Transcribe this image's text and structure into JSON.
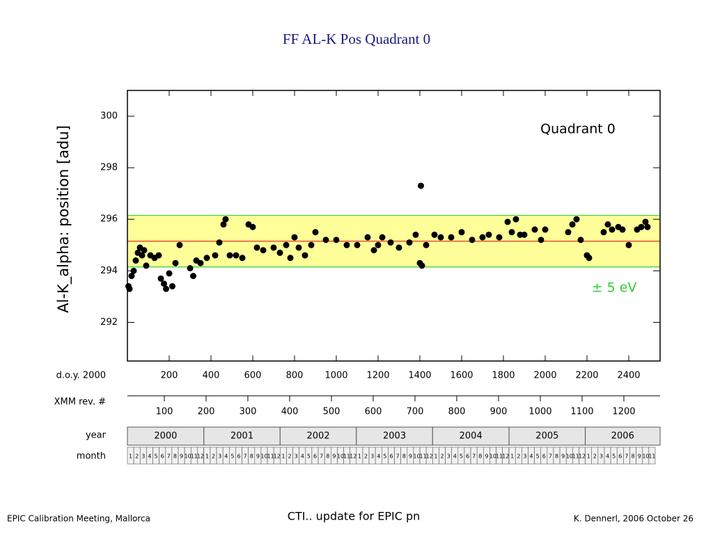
{
  "slide_title": "FF   AL-K   Pos   Quadrant 0",
  "footer": {
    "left": "EPIC Calibration Meeting, Mallorca",
    "center": "CTI.. update for EPIC pn",
    "right": "K. Dennerl, 2006 October 26"
  },
  "chart_data": {
    "type": "scatter",
    "y_label": "Al-K_alpha:  position  [adu]",
    "annotation": "Quadrant 0",
    "band_label": "± 5 eV",
    "band": [
      294.15,
      296.15
    ],
    "band_color": "#ffff99",
    "band_line_color": "#33cc33",
    "center": 295.15,
    "center_color": "#e03020",
    "color": "#000000",
    "x_label": "d.o.y. 2000",
    "xlim": [
      0,
      2550
    ],
    "xticks": [
      200,
      400,
      600,
      800,
      1000,
      1200,
      1400,
      1600,
      1800,
      2000,
      2200,
      2400
    ],
    "ylim": [
      290.5,
      301
    ],
    "yticks": [
      292,
      294,
      296,
      298,
      300
    ],
    "rev_label": "XMM rev. #",
    "rev_xlim": [
      11.7,
      1286.7
    ],
    "rev_ticks": [
      100,
      200,
      300,
      400,
      500,
      600,
      700,
      800,
      900,
      1000,
      1100,
      1200
    ],
    "year_label": "year",
    "years": [
      "2000",
      "2001",
      "2002",
      "2003",
      "2004",
      "2005",
      "2006"
    ],
    "year_starts": [
      0,
      366,
      731,
      1096,
      1461,
      1827,
      2192
    ],
    "month_label": "month",
    "months": [
      1,
      2,
      3,
      4,
      5,
      6,
      7,
      8,
      9,
      10,
      11,
      12
    ],
    "x": [
      5,
      10,
      20,
      30,
      40,
      50,
      60,
      70,
      80,
      90,
      110,
      130,
      150,
      160,
      175,
      185,
      200,
      215,
      230,
      250,
      300,
      315,
      330,
      350,
      380,
      420,
      440,
      460,
      470,
      490,
      520,
      550,
      580,
      600,
      620,
      650,
      700,
      730,
      760,
      780,
      800,
      820,
      850,
      880,
      900,
      950,
      1000,
      1050,
      1100,
      1150,
      1180,
      1200,
      1220,
      1260,
      1300,
      1350,
      1380,
      1400,
      1410,
      1405,
      1430,
      1470,
      1500,
      1550,
      1600,
      1650,
      1700,
      1730,
      1780,
      1820,
      1840,
      1860,
      1880,
      1900,
      1950,
      1980,
      2000,
      2110,
      2130,
      2150,
      2170,
      2200,
      2210,
      2280,
      2300,
      2320,
      2350,
      2370,
      2400,
      2440,
      2460,
      2480,
      2490
    ],
    "values": [
      293.4,
      293.3,
      293.8,
      294.0,
      294.4,
      294.7,
      294.9,
      294.6,
      294.8,
      294.2,
      294.6,
      294.5,
      294.6,
      293.7,
      293.5,
      293.3,
      293.9,
      293.4,
      294.3,
      295.0,
      294.1,
      293.8,
      294.4,
      294.3,
      294.5,
      294.6,
      295.1,
      295.8,
      296.0,
      294.6,
      294.6,
      294.5,
      295.8,
      295.7,
      294.9,
      294.8,
      294.9,
      294.7,
      295.0,
      294.5,
      295.3,
      294.9,
      294.6,
      295.0,
      295.5,
      295.2,
      295.2,
      295.0,
      295.0,
      295.3,
      294.8,
      295.0,
      295.3,
      295.1,
      294.9,
      295.1,
      295.4,
      294.3,
      294.2,
      297.3,
      295.0,
      295.4,
      295.3,
      295.3,
      295.5,
      295.2,
      295.3,
      295.4,
      295.3,
      295.9,
      295.5,
      296.0,
      295.4,
      295.4,
      295.6,
      295.2,
      295.6,
      295.5,
      295.8,
      296.0,
      295.2,
      294.6,
      294.5,
      295.5,
      295.8,
      295.6,
      295.7,
      295.6,
      295.0,
      295.6,
      295.7,
      295.9,
      295.7
    ]
  }
}
